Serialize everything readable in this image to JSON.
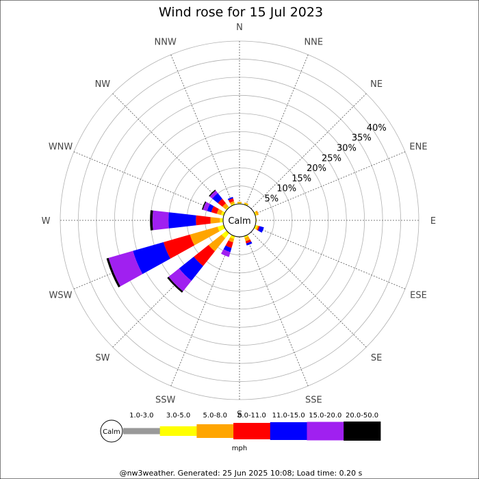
{
  "chart_data": {
    "type": "windrose",
    "title": "Wind rose for 15 Jul 2023",
    "directions": [
      "N",
      "NNE",
      "NE",
      "ENE",
      "E",
      "ESE",
      "SE",
      "SSE",
      "S",
      "SSW",
      "SW",
      "WSW",
      "W",
      "WNW",
      "NW",
      "NNW"
    ],
    "radial_ticks": [
      "5%",
      "10%",
      "15%",
      "20%",
      "25%",
      "30%",
      "35%",
      "40%"
    ],
    "radial_max_pct": 45,
    "center_label": "Calm",
    "unit": "mph",
    "bins": [
      {
        "label": "1.0-3.0",
        "color": "#999999"
      },
      {
        "label": "3.0-5.0",
        "color": "#ffff00"
      },
      {
        "label": "5.0-8.0",
        "color": "#ffa500"
      },
      {
        "label": "8.0-11.0",
        "color": "#ff0000"
      },
      {
        "label": "11.0-15.0",
        "color": "#0000ff"
      },
      {
        "label": "15.0-20.0",
        "color": "#a020f0"
      },
      {
        "label": "20.0-50.0",
        "color": "#000000"
      }
    ],
    "series": [
      {
        "dir": "N",
        "values": [
          0.0,
          0.3,
          0.3,
          0.0,
          0.0,
          0.0,
          0.0
        ]
      },
      {
        "dir": "NNE",
        "values": [
          0.0,
          0.3,
          0.3,
          0.0,
          0.0,
          0.0,
          0.0
        ]
      },
      {
        "dir": "NE",
        "values": [
          0.0,
          0.0,
          0.0,
          0.0,
          0.0,
          0.0,
          0.0
        ]
      },
      {
        "dir": "ENE",
        "values": [
          0.0,
          0.4,
          0.6,
          0.0,
          0.0,
          0.0,
          0.0
        ]
      },
      {
        "dir": "E",
        "values": [
          0.0,
          0.2,
          0.0,
          0.0,
          0.0,
          0.0,
          0.0
        ]
      },
      {
        "dir": "ESE",
        "values": [
          0.0,
          0.6,
          0.4,
          0.3,
          1.2,
          0.0,
          0.0
        ]
      },
      {
        "dir": "SE",
        "values": [
          0.0,
          0.0,
          0.0,
          0.0,
          0.0,
          0.0,
          0.0
        ]
      },
      {
        "dir": "SSE",
        "values": [
          0.0,
          0.5,
          1.0,
          0.6,
          0.6,
          0.0,
          0.0
        ]
      },
      {
        "dir": "S",
        "values": [
          0.0,
          0.0,
          0.0,
          0.0,
          0.0,
          0.0,
          0.0
        ]
      },
      {
        "dir": "SSW",
        "values": [
          0.0,
          0.8,
          1.0,
          1.6,
          1.2,
          1.4,
          0.0
        ]
      },
      {
        "dir": "SW",
        "values": [
          0.0,
          1.8,
          4.6,
          5.2,
          5.2,
          3.7,
          0.5
        ]
      },
      {
        "dir": "WSW",
        "values": [
          0.0,
          1.8,
          7.9,
          7.6,
          8.8,
          7.0,
          0.6
        ]
      },
      {
        "dir": "W",
        "values": [
          0.0,
          0.9,
          2.6,
          4.0,
          7.6,
          4.4,
          0.7
        ]
      },
      {
        "dir": "WNW",
        "values": [
          0.0,
          0.8,
          1.2,
          1.6,
          1.2,
          1.2,
          0.3
        ]
      },
      {
        "dir": "NW",
        "values": [
          0.0,
          0.4,
          1.1,
          1.6,
          2.0,
          0.9,
          0.3
        ]
      },
      {
        "dir": "NNW",
        "values": [
          0.0,
          0.4,
          0.6,
          0.8,
          0.4,
          0.0,
          0.0
        ]
      }
    ]
  },
  "footer": "@nw3weather. Generated: 25 Jun 2025 10:08; Load time: 0.20 s"
}
